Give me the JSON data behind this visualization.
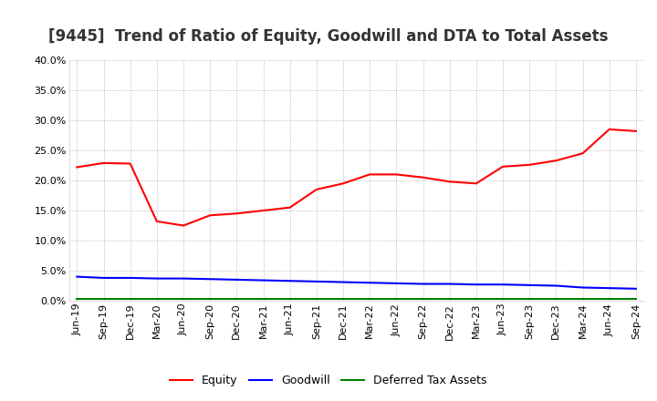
{
  "title": "[9445]  Trend of Ratio of Equity, Goodwill and DTA to Total Assets",
  "x_labels": [
    "Jun-19",
    "Sep-19",
    "Dec-19",
    "Mar-20",
    "Jun-20",
    "Sep-20",
    "Dec-20",
    "Mar-21",
    "Jun-21",
    "Sep-21",
    "Dec-21",
    "Mar-22",
    "Jun-22",
    "Sep-22",
    "Dec-22",
    "Mar-23",
    "Jun-23",
    "Sep-23",
    "Dec-23",
    "Mar-24",
    "Jun-24",
    "Sep-24"
  ],
  "equity": [
    22.2,
    22.9,
    22.8,
    13.2,
    12.5,
    14.2,
    14.5,
    15.0,
    15.5,
    18.5,
    19.5,
    21.0,
    21.0,
    20.5,
    19.8,
    19.5,
    22.3,
    22.6,
    23.3,
    24.5,
    28.5,
    28.2
  ],
  "goodwill": [
    4.0,
    3.8,
    3.8,
    3.7,
    3.7,
    3.6,
    3.5,
    3.4,
    3.3,
    3.2,
    3.1,
    3.0,
    2.9,
    2.8,
    2.8,
    2.7,
    2.7,
    2.6,
    2.5,
    2.2,
    2.1,
    2.0
  ],
  "dta": [
    0.3,
    0.3,
    0.3,
    0.3,
    0.3,
    0.3,
    0.3,
    0.3,
    0.3,
    0.3,
    0.3,
    0.3,
    0.3,
    0.3,
    0.3,
    0.3,
    0.3,
    0.3,
    0.3,
    0.3,
    0.3,
    0.3
  ],
  "equity_color": "#FF0000",
  "goodwill_color": "#0000FF",
  "dta_color": "#008000",
  "ylim": [
    0,
    40
  ],
  "yticks": [
    0.0,
    5.0,
    10.0,
    15.0,
    20.0,
    25.0,
    30.0,
    35.0,
    40.0
  ],
  "background_color": "#FFFFFF",
  "grid_color": "#AAAAAA",
  "title_fontsize": 12,
  "tick_fontsize": 8,
  "legend_labels": [
    "Equity",
    "Goodwill",
    "Deferred Tax Assets"
  ]
}
